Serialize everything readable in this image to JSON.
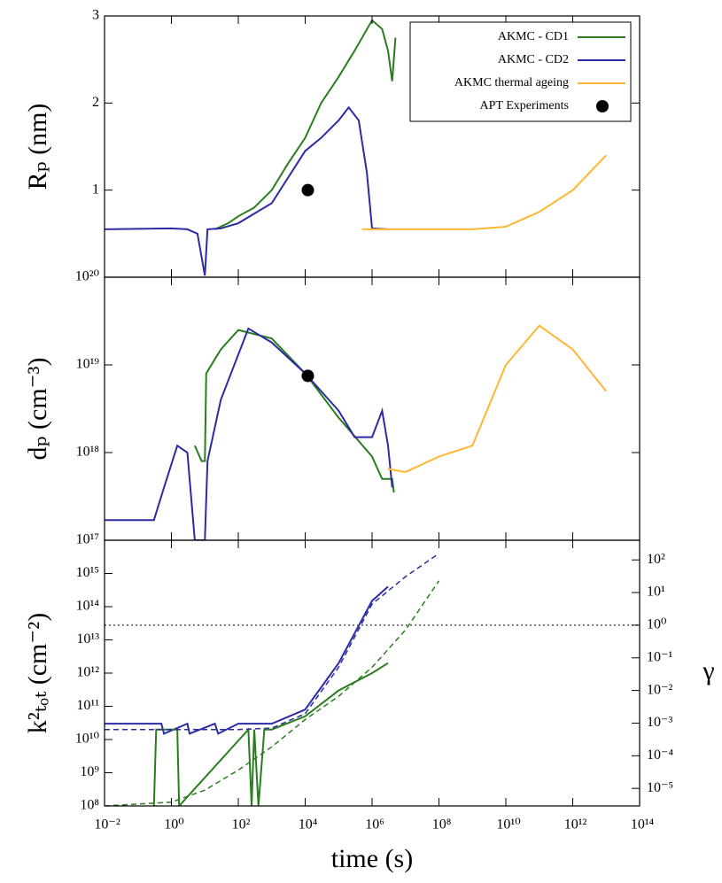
{
  "chart_data": [
    {
      "type": "line",
      "ylabel": "Rₚ (nm)",
      "xscale": "log",
      "xlim": [
        0.01,
        100000000000000.0
      ],
      "ylim": [
        0,
        3
      ],
      "yticks": [
        1,
        2,
        3
      ],
      "legend": "upper right",
      "series": [
        {
          "name": "AKMC - CD1",
          "color": "#2a7d1e",
          "x": [
            20,
            50,
            100,
            300,
            1000,
            3000,
            10000,
            30000,
            100000,
            300000,
            1000000,
            2000000,
            3000000,
            4000000,
            5000000
          ],
          "values": [
            0.55,
            0.62,
            0.7,
            0.8,
            1.0,
            1.3,
            1.6,
            2.0,
            2.3,
            2.6,
            2.95,
            2.85,
            2.6,
            2.25,
            2.75
          ]
        },
        {
          "name": "AKMC - CD2",
          "color": "#2b2ba3",
          "x": [
            0.01,
            1,
            3,
            6,
            10,
            12,
            30,
            100,
            1000,
            10000,
            30000,
            100000,
            200000,
            400000,
            700000,
            1000000,
            3000000
          ],
          "values": [
            0.55,
            0.56,
            0.55,
            0.5,
            0.02,
            0.55,
            0.56,
            0.62,
            0.85,
            1.45,
            1.6,
            1.8,
            1.95,
            1.8,
            1.2,
            0.56,
            0.55
          ]
        },
        {
          "name": "AKMC thermal ageing",
          "color": "#ffb733",
          "x": [
            500000,
            10000000,
            100000000,
            1000000000,
            10000000000,
            100000000000,
            1000000000000,
            10000000000000
          ],
          "values": [
            0.55,
            0.55,
            0.55,
            0.55,
            0.58,
            0.75,
            1.0,
            1.4
          ]
        },
        {
          "name": "APT Experiments",
          "color": "#000000",
          "mode": "markers",
          "x": [
            12000
          ],
          "values": [
            1.0
          ]
        }
      ]
    },
    {
      "type": "line",
      "ylabel": "dₚ (cm⁻³)",
      "xscale": "log",
      "yscale": "log",
      "xlim": [
        0.01,
        100000000000000.0
      ],
      "ylim": [
        1e+17,
        1e+20
      ],
      "yticks": [
        {
          "value": 1e+17,
          "label": "10¹⁷"
        },
        {
          "value": 1e+18,
          "label": "10¹⁸"
        },
        {
          "value": 1e+19,
          "label": "10¹⁹"
        },
        {
          "value": 1e+20,
          "label": "10²⁰"
        }
      ],
      "series": [
        {
          "name": "AKMC - CD1",
          "color": "#2a7d1e",
          "x": [
            5,
            8,
            10,
            11,
            30,
            100,
            1000,
            10000,
            100000,
            1000000,
            2000000,
            4000000,
            4500000
          ],
          "values": [
            1.2e+18,
            8e+17,
            8e+17,
            8e+18,
            1.5e+19,
            2.5e+19,
            2e+19,
            8e+18,
            2.5e+18,
            9e+17,
            5e+17,
            5e+17,
            3.5e+17
          ]
        },
        {
          "name": "AKMC - CD2",
          "color": "#2b2ba3",
          "x": [
            0.01,
            0.3,
            0.6,
            1.5,
            3,
            5,
            10,
            12,
            30,
            200,
            1000,
            10000,
            100000,
            300000,
            1000000,
            2000000,
            3000000,
            4000000
          ],
          "values": [
            1.7e+17,
            1.7e+17,
            4e+17,
            1.2e+18,
            1e+18,
            1e+17,
            1e+17,
            8e+17,
            4e+18,
            2.6e+19,
            1.8e+19,
            8e+18,
            3e+18,
            1.5e+18,
            1.5e+18,
            3e+18,
            1.2e+18,
            4e+17
          ]
        },
        {
          "name": "AKMC thermal ageing",
          "color": "#ffb733",
          "x": [
            3000000,
            10000000,
            100000000,
            1000000000,
            10000000000,
            100000000000,
            1000000000000,
            10000000000000
          ],
          "values": [
            6.5e+17,
            6e+17,
            9e+17,
            1.2e+18,
            1e+19,
            2.8e+19,
            1.5e+19,
            5e+18
          ]
        },
        {
          "name": "APT Experiments",
          "color": "#000000",
          "mode": "markers",
          "x": [
            12000
          ],
          "values": [
            7.5e+18
          ]
        }
      ]
    },
    {
      "type": "line",
      "ylabel": "k²ₜₒₜ (cm⁻²)",
      "y2label": "γ",
      "xlabel": "time (s)",
      "xscale": "log",
      "yscale": "log",
      "y2scale": "log",
      "xlim": [
        0.01,
        100000000000000.0
      ],
      "xticks": [
        {
          "value": 0.01,
          "label": "10⁻²"
        },
        {
          "value": 1,
          "label": "10⁰"
        },
        {
          "value": 100,
          "label": "10²"
        },
        {
          "value": 10000,
          "label": "10⁴"
        },
        {
          "value": 1000000,
          "label": "10⁶"
        },
        {
          "value": 100000000,
          "label": "10⁸"
        },
        {
          "value": 10000000000,
          "label": "10¹⁰"
        },
        {
          "value": 1000000000000,
          "label": "10¹²"
        },
        {
          "value": 100000000000000.0,
          "label": "10¹⁴"
        }
      ],
      "ylim": [
        100000000.0,
        1e+16
      ],
      "yticks": [
        {
          "value": 100000000.0,
          "label": "10⁸"
        },
        {
          "value": 1000000000.0,
          "label": "10⁹"
        },
        {
          "value": 10000000000.0,
          "label": "10¹⁰"
        },
        {
          "value": 100000000000.0,
          "label": "10¹¹"
        },
        {
          "value": 1000000000000.0,
          "label": "10¹²"
        },
        {
          "value": 10000000000000.0,
          "label": "10¹³"
        },
        {
          "value": 100000000000000.0,
          "label": "10¹⁴"
        },
        {
          "value": 1000000000000000.0,
          "label": "10¹⁵"
        }
      ],
      "y2lim": [
        2.9e-06,
        400
      ],
      "y2ticks": [
        {
          "value": 1e-05,
          "label": "10⁻⁵"
        },
        {
          "value": 0.0001,
          "label": "10⁻⁴"
        },
        {
          "value": 0.001,
          "label": "10⁻³"
        },
        {
          "value": 0.01,
          "label": "10⁻²"
        },
        {
          "value": 0.1,
          "label": "10⁻¹"
        },
        {
          "value": 1,
          "label": "10⁰"
        },
        {
          "value": 10,
          "label": "10¹"
        },
        {
          "value": 100,
          "label": "10²"
        }
      ],
      "series": [
        {
          "color": "#2b2ba3",
          "x": [
            0.01,
            0.5,
            0.6,
            3,
            3.5,
            20,
            25,
            100,
            1000,
            10000,
            100000,
            1000000,
            3000000
          ],
          "values": [
            30000000000.0,
            30000000000.0,
            15000000000.0,
            30000000000.0,
            15000000000.0,
            30000000000.0,
            15000000000.0,
            30000000000.0,
            30000000000.0,
            80000000000.0,
            2000000000000.0,
            150000000000000.0,
            400000000000000.0
          ]
        },
        {
          "color": "#2a7d1e",
          "x": [
            0.3,
            0.35,
            1.5,
            1.7,
            200,
            250,
            300,
            400,
            600,
            1000,
            10000,
            100000,
            1000000,
            3000000
          ],
          "values": [
            100000000.0,
            20000000000.0,
            20000000000.0,
            100000000.0,
            20000000000.0,
            100000000.0,
            20000000000.0,
            100000000.0,
            20000000000.0,
            20000000000.0,
            50000000000.0,
            300000000000.0,
            1000000000000.0,
            2000000000000.0
          ]
        },
        {
          "color": "#2b2ba3",
          "linestyle": "dashed",
          "x": [
            0.01,
            100,
            1000,
            10000,
            100000,
            1000000,
            10000000,
            100000000
          ],
          "values": [
            20000000000.0,
            20000000000.0,
            22000000000.0,
            60000000000.0,
            1500000000000.0,
            120000000000000.0,
            800000000000000.0,
            4000000000000000.0
          ]
        },
        {
          "color": "#2a7d1e",
          "linestyle": "dashed",
          "x": [
            0.01,
            1,
            10,
            100,
            1000,
            10000,
            100000,
            1000000,
            10000000,
            100000000
          ],
          "values": [
            100000000.0,
            130000000.0,
            300000000.0,
            1200000000.0,
            6000000000.0,
            40000000000.0,
            200000000000.0,
            1500000000000.0,
            20000000000000.0,
            600000000000000.0
          ]
        },
        {
          "color": "#555555",
          "linestyle": "dotted",
          "axis": "y2",
          "x": [
            0.01,
            100000000000000.0
          ],
          "values": [
            1,
            1
          ]
        }
      ]
    }
  ]
}
